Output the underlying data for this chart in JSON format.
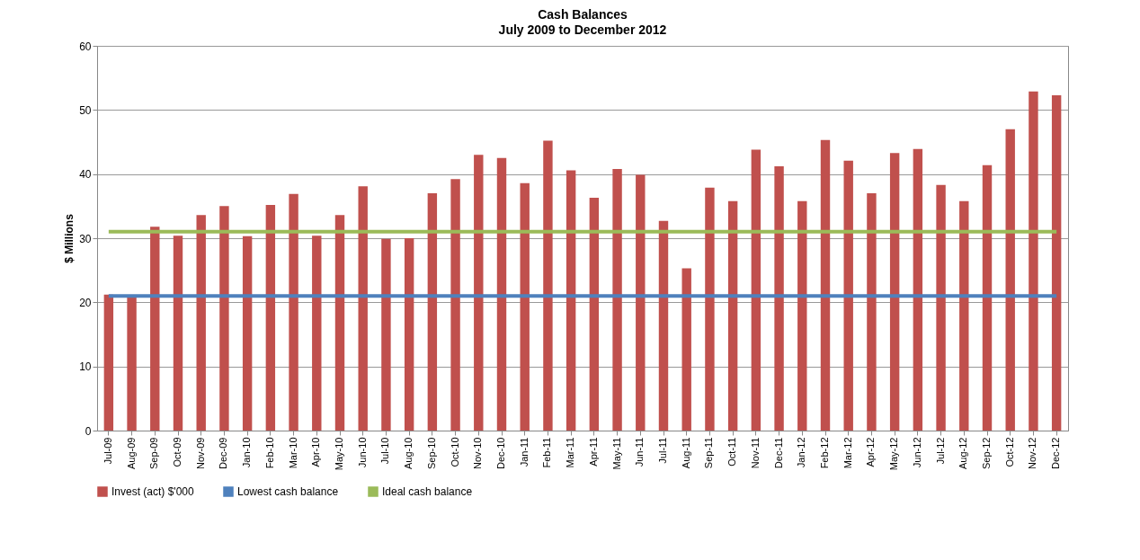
{
  "chart_data": {
    "type": "bar",
    "title": "Cash Balances",
    "subtitle": "July 2009 to December 2012",
    "ylabel": "$ Millions",
    "categories": [
      "Jul-09",
      "Aug-09",
      "Sep-09",
      "Oct-09",
      "Nov-09",
      "Dec-09",
      "Jan-10",
      "Feb-10",
      "Mar-10",
      "Apr-10",
      "May-10",
      "Jun-10",
      "Jul-10",
      "Aug-10",
      "Sep-10",
      "Oct-10",
      "Nov-10",
      "Dec-10",
      "Jan-11",
      "Feb-11",
      "Mar-11",
      "Apr-11",
      "May-11",
      "Jun-11",
      "Jul-11",
      "Aug-11",
      "Sep-11",
      "Oct-11",
      "Nov-11",
      "Dec-11",
      "Jan-12",
      "Feb-12",
      "Mar-12",
      "Apr-12",
      "May-12",
      "Jun-12",
      "Jul-12",
      "Aug-12",
      "Sep-12",
      "Oct-12",
      "Nov-12",
      "Dec-12"
    ],
    "series": [
      {
        "name": "Invest (act) $'000",
        "color": "#c0504d",
        "values": [
          21.2,
          20.8,
          31.8,
          30.4,
          33.6,
          35.0,
          30.3,
          35.2,
          36.9,
          30.4,
          33.6,
          38.1,
          29.9,
          30.0,
          37.0,
          39.2,
          43.0,
          42.5,
          38.6,
          45.2,
          40.6,
          36.3,
          40.8,
          39.9,
          32.7,
          25.3,
          37.9,
          35.8,
          43.8,
          41.2,
          35.8,
          45.3,
          42.1,
          37.0,
          43.3,
          43.9,
          38.3,
          35.8,
          41.4,
          47.0,
          52.9,
          52.3
        ]
      },
      {
        "name": "Lowest cash balance",
        "type": "line",
        "color": "#4f81bd",
        "values": [
          21,
          21,
          21,
          21,
          21,
          21,
          21,
          21,
          21,
          21,
          21,
          21,
          21,
          21,
          21,
          21,
          21,
          21,
          21,
          21,
          21,
          21,
          21,
          21,
          21,
          21,
          21,
          21,
          21,
          21,
          21,
          21,
          21,
          21,
          21,
          21,
          21,
          21,
          21,
          21,
          21,
          21
        ]
      },
      {
        "name": "Ideal cash balance",
        "type": "line",
        "color": "#9bbb59",
        "values": [
          31,
          31,
          31,
          31,
          31,
          31,
          31,
          31,
          31,
          31,
          31,
          31,
          31,
          31,
          31,
          31,
          31,
          31,
          31,
          31,
          31,
          31,
          31,
          31,
          31,
          31,
          31,
          31,
          31,
          31,
          31,
          31,
          31,
          31,
          31,
          31,
          31,
          31,
          31,
          31,
          31,
          31
        ]
      }
    ],
    "ylim": [
      0,
      60
    ],
    "yticks": [
      0,
      10,
      20,
      30,
      40,
      50,
      60
    ],
    "grid": "y",
    "legend": "bottom"
  }
}
